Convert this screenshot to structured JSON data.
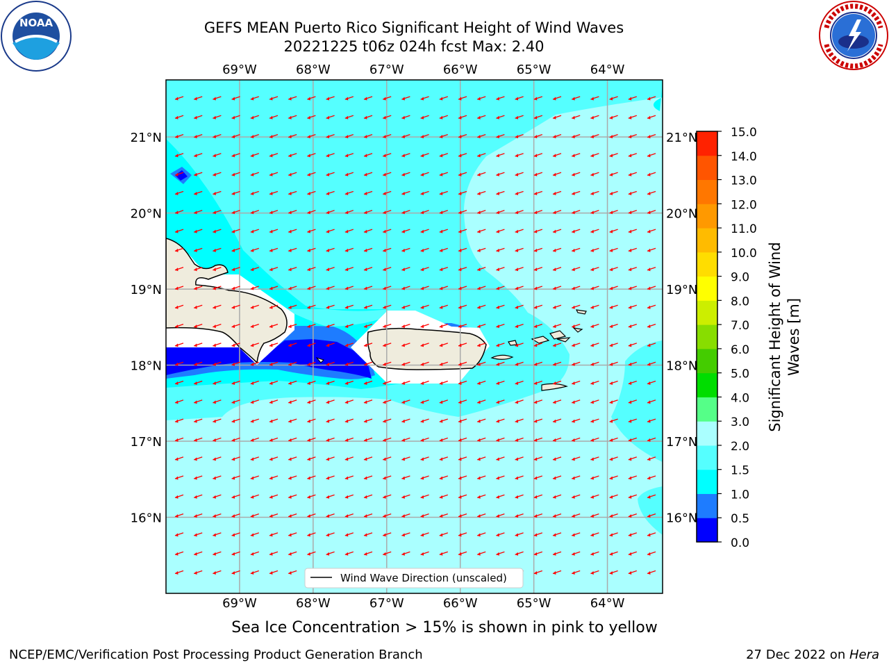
{
  "header": {
    "title_line1": "GEFS MEAN Puerto Rico Significant Height of Wind Waves",
    "title_line2": "20221225 t06z 024h fcst   Max: 2.40"
  },
  "logos": {
    "left": "noaa-logo",
    "right": "national-weather-service-logo"
  },
  "map": {
    "lon_ticks": [
      "69°W",
      "68°W",
      "67°W",
      "66°W",
      "65°W",
      "64°W"
    ],
    "lat_ticks": [
      "21°N",
      "20°N",
      "19°N",
      "18°N",
      "17°N",
      "16°N"
    ],
    "lon_values": [
      -69,
      -68,
      -67,
      -66,
      -65,
      -64
    ],
    "lat_values": [
      21,
      20,
      19,
      18,
      17,
      16
    ],
    "extent": {
      "lon_min": -70.0,
      "lon_max": -63.25,
      "lat_min": 15.0,
      "lat_max": 21.75
    },
    "land_color": "#efecdd",
    "arrow_color": "#ff0000",
    "legend_label": "Wind Wave Direction (unscaled)"
  },
  "colorbar": {
    "label": "Significant Height of Wind Waves [m]",
    "label_line1": "Significant Height of Wind",
    "label_line2": "Waves [m]",
    "tick_labels": [
      "0.0",
      "0.5",
      "1.0",
      "1.5",
      "2.0",
      "3.0",
      "4.0",
      "5.0",
      "6.0",
      "7.0",
      "8.0",
      "9.0",
      "10.0",
      "11.0",
      "12.0",
      "13.0",
      "14.0",
      "15.0"
    ],
    "colors": [
      "#0000ff",
      "#1e7cff",
      "#00ffff",
      "#55ffff",
      "#aaffff",
      "#55ff88",
      "#00dd00",
      "#44cc00",
      "#88dd00",
      "#ccee00",
      "#ffff00",
      "#ffdd00",
      "#ffbb00",
      "#ff9900",
      "#ff7700",
      "#ff5500",
      "#ff2200"
    ]
  },
  "footer": {
    "ice_note": "Sea Ice Concentration > 15% is shown in pink to yellow",
    "credit": "NCEP/EMC/Verification Post Processing Product Generation Branch",
    "date": "27 Dec 2022 on ",
    "machine": "Hera"
  }
}
